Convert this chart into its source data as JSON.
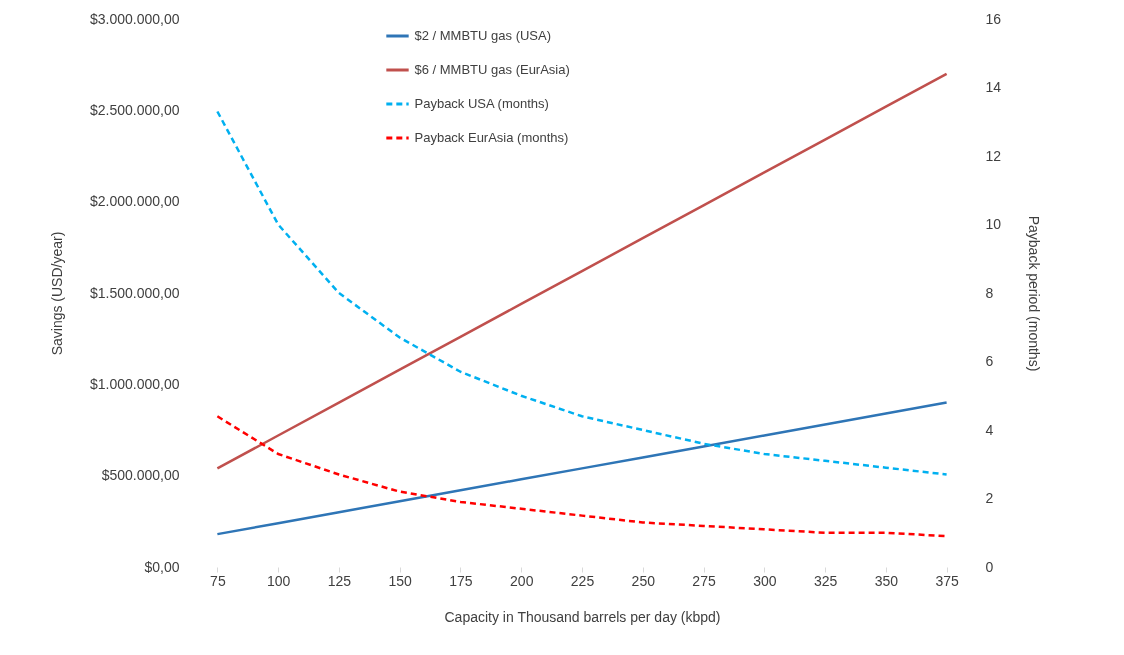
{
  "chart_data": {
    "type": "line",
    "xlabel": "Capacity in Thousand barrels per day (kbpd)",
    "ylabel": "Savings (USD/year)",
    "y2label": "Payback period (months)",
    "categories": [
      "75",
      "100",
      "125",
      "150",
      "175",
      "200",
      "225",
      "250",
      "275",
      "300",
      "325",
      "350",
      "375"
    ],
    "series": [
      {
        "name": "$2 / MMBTU gas (USA)",
        "color": "#2e75b6",
        "line_style": "solid",
        "values": [
          180000,
          240000,
          300000,
          360000,
          420000,
          480000,
          540000,
          600000,
          660000,
          720000,
          780000,
          840000,
          900000
        ]
      },
      {
        "name": "$6 / MMBTU gas (EurAsia)",
        "color": "#c0504d",
        "line_style": "solid",
        "values": [
          540000,
          720000,
          900000,
          1080000,
          1260000,
          1440000,
          1620000,
          1800000,
          1980000,
          2160000,
          2340000,
          2520000,
          2700000
        ]
      },
      {
        "name": "Payback USA (months)",
        "color": "#00b0f0",
        "line_style": "dashed",
        "axis": "y2",
        "values": [
          13.3,
          10,
          8,
          6.7,
          5.7,
          5,
          4.4,
          4,
          3.6,
          3.3,
          3.1,
          2.9,
          2.7
        ]
      },
      {
        "name": "Payback EurAsia (months)",
        "color": "#ff0000",
        "line_style": "dashed",
        "axis": "y2",
        "values": [
          4.4,
          3.3,
          2.7,
          2.2,
          1.9,
          1.7,
          1.5,
          1.3,
          1.2,
          1.1,
          1.0,
          1.0,
          0.9
        ]
      }
    ],
    "ylim": [
      0,
      3000000
    ],
    "yticks": [
      {
        "value": 0,
        "label": "$0,00"
      },
      {
        "value": 500000,
        "label": "$500.000,00"
      },
      {
        "value": 1000000,
        "label": "$1.000.000,00"
      },
      {
        "value": 1500000,
        "label": "$1.500.000,00"
      },
      {
        "value": 2000000,
        "label": "$2.000.000,00"
      },
      {
        "value": 2500000,
        "label": "$2.500.000,00"
      },
      {
        "value": 3000000,
        "label": "$3.000.000,00"
      }
    ],
    "y2lim": [
      0,
      16
    ],
    "y2ticks": [
      0,
      2,
      4,
      6,
      8,
      10,
      12,
      14,
      16
    ],
    "legend": "top",
    "grid": false,
    "marker": "none"
  }
}
